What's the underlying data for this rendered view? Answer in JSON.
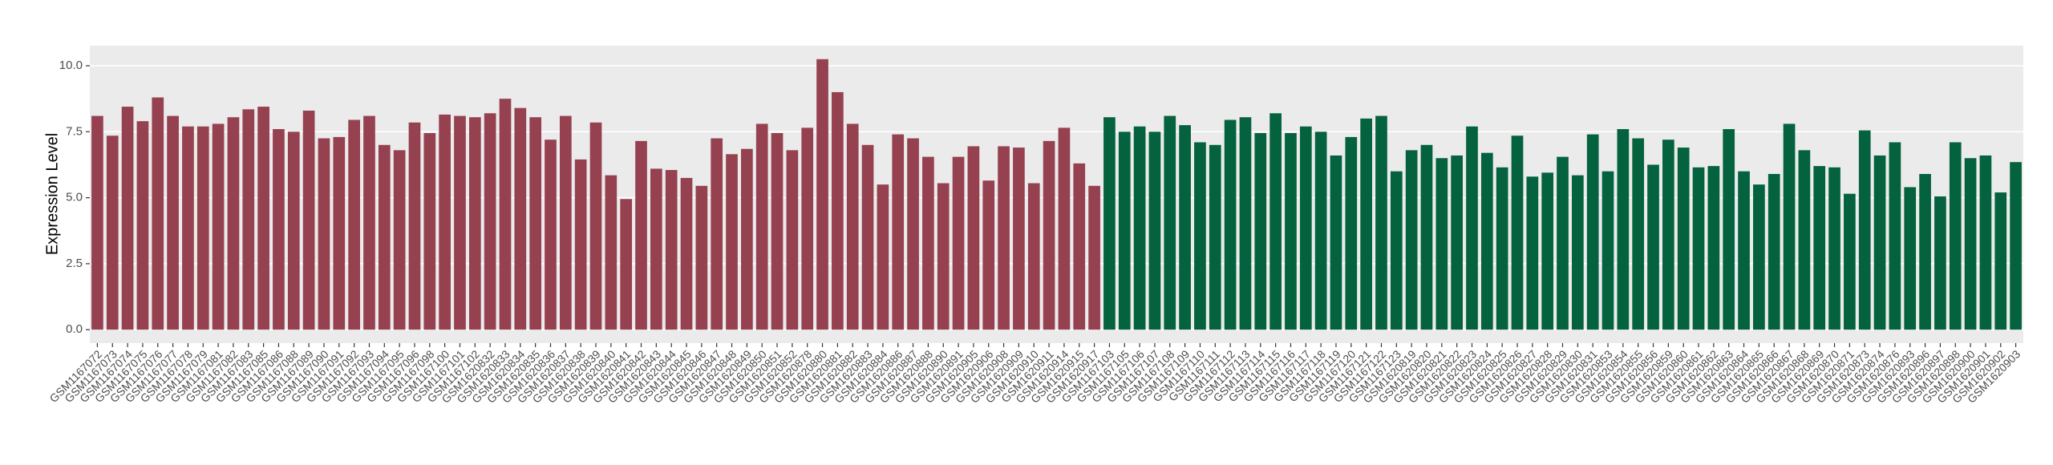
{
  "chart_data": {
    "type": "bar",
    "y_axis_label": "Expression Level",
    "ylim": [
      -0.51,
      10.76
    ],
    "yticks": [
      {
        "value": 0,
        "label": "0.0"
      },
      {
        "value": 2.5,
        "label": "2.5"
      },
      {
        "value": 5,
        "label": "5.0"
      },
      {
        "value": 7.5,
        "label": "7.5"
      },
      {
        "value": 10,
        "label": "10.0"
      }
    ],
    "grid": true,
    "categories": [
      "GSM1167072",
      "GSM1167073",
      "GSM1167074",
      "GSM1167075",
      "GSM1167076",
      "GSM1167077",
      "GSM1167078",
      "GSM1167079",
      "GSM1167081",
      "GSM1167082",
      "GSM1167083",
      "GSM1167085",
      "GSM1167086",
      "GSM1167088",
      "GSM1167089",
      "GSM1167090",
      "GSM1167091",
      "GSM1167092",
      "GSM1167093",
      "GSM1167094",
      "GSM1167095",
      "GSM1167096",
      "GSM1167098",
      "GSM1167100",
      "GSM1167101",
      "GSM1167102",
      "GSM1620832",
      "GSM1620833",
      "GSM1620834",
      "GSM1620835",
      "GSM1620836",
      "GSM1620837",
      "GSM1620838",
      "GSM1620839",
      "GSM1620840",
      "GSM1620841",
      "GSM1620842",
      "GSM1620843",
      "GSM1620844",
      "GSM1620845",
      "GSM1620846",
      "GSM1620847",
      "GSM1620848",
      "GSM1620849",
      "GSM1620850",
      "GSM1620851",
      "GSM1620852",
      "GSM1620878",
      "GSM1620880",
      "GSM1620881",
      "GSM1620882",
      "GSM1620883",
      "GSM1620884",
      "GSM1620886",
      "GSM1620887",
      "GSM1620888",
      "GSM1620890",
      "GSM1620891",
      "GSM1620905",
      "GSM1620906",
      "GSM1620908",
      "GSM1620909",
      "GSM1620910",
      "GSM1620911",
      "GSM1620914",
      "GSM1620915",
      "GSM1620917",
      "GSM1167103",
      "GSM1167105",
      "GSM1167106",
      "GSM1167107",
      "GSM1167108",
      "GSM1167109",
      "GSM1167110",
      "GSM1167111",
      "GSM1167112",
      "GSM1167113",
      "GSM1167114",
      "GSM1167115",
      "GSM1167116",
      "GSM1167117",
      "GSM1167118",
      "GSM1167119",
      "GSM1167120",
      "GSM1167121",
      "GSM1167122",
      "GSM1167123",
      "GSM1620819",
      "GSM1620820",
      "GSM1620821",
      "GSM1620822",
      "GSM1620823",
      "GSM1620824",
      "GSM1620825",
      "GSM1620826",
      "GSM1620827",
      "GSM1620828",
      "GSM1620829",
      "GSM1620830",
      "GSM1620831",
      "GSM1620853",
      "GSM1620854",
      "GSM1620855",
      "GSM1620856",
      "GSM1620859",
      "GSM1620860",
      "GSM1620861",
      "GSM1620862",
      "GSM1620863",
      "GSM1620864",
      "GSM1620865",
      "GSM1620866",
      "GSM1620867",
      "GSM1620868",
      "GSM1620869",
      "GSM1620870",
      "GSM1620871",
      "GSM1620873",
      "GSM1620874",
      "GSM1620876",
      "GSM1620893",
      "GSM1620896",
      "GSM1620897",
      "GSM1620898",
      "GSM1620900",
      "GSM1620901",
      "GSM1620902",
      "GSM1620903"
    ],
    "values": [
      8.1,
      7.35,
      8.45,
      7.9,
      8.8,
      8.1,
      7.7,
      7.7,
      7.8,
      8.05,
      8.35,
      8.45,
      7.6,
      7.5,
      8.3,
      7.25,
      7.3,
      7.95,
      8.1,
      7.0,
      6.8,
      7.85,
      7.45,
      8.15,
      8.1,
      8.05,
      8.2,
      8.75,
      8.4,
      8.05,
      7.2,
      8.1,
      6.45,
      7.85,
      5.85,
      4.95,
      7.15,
      6.1,
      6.05,
      5.75,
      5.45,
      7.25,
      6.65,
      6.85,
      7.8,
      7.45,
      6.8,
      7.65,
      10.25,
      9.0,
      7.8,
      7.0,
      5.5,
      7.4,
      7.25,
      6.55,
      5.55,
      6.55,
      6.95,
      5.65,
      6.95,
      6.9,
      5.55,
      7.15,
      7.65,
      6.3,
      5.45,
      8.05,
      7.5,
      7.7,
      7.5,
      8.1,
      7.75,
      7.1,
      7.0,
      7.95,
      8.05,
      7.45,
      8.2,
      7.45,
      7.7,
      7.5,
      6.6,
      7.3,
      8.0,
      8.1,
      6.0,
      6.8,
      7.0,
      6.5,
      6.6,
      7.7,
      6.7,
      6.15,
      7.35,
      5.8,
      5.95,
      6.55,
      5.85,
      7.4,
      6.0,
      7.6,
      7.25,
      6.25,
      7.2,
      6.9,
      6.15,
      6.2,
      7.6,
      6.0,
      5.5,
      5.9,
      7.8,
      6.8,
      6.2,
      6.15,
      5.15,
      7.55,
      6.6,
      7.1,
      5.4,
      5.9,
      5.05,
      7.1,
      6.5,
      6.6,
      5.2,
      6.35
    ],
    "group_colors": [
      {
        "color": "#964150",
        "count": 67
      },
      {
        "color": "#05623f",
        "count": 61
      }
    ]
  }
}
